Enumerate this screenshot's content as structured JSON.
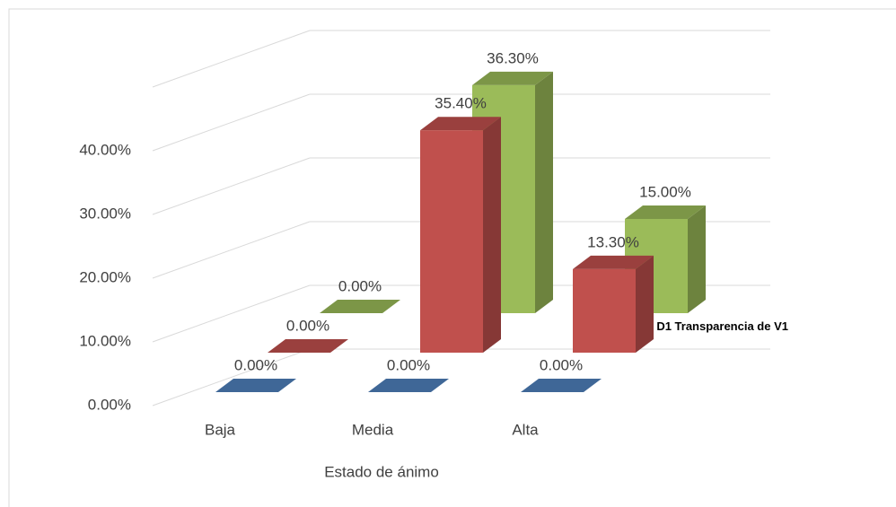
{
  "chart_data": {
    "type": "bar3d",
    "categories": [
      "Baja",
      "Media",
      "Alta"
    ],
    "x_label": "Estado de ánimo",
    "depth_label": "D1 Transparencia de V1",
    "series": [
      {
        "color": "#4F81BD",
        "values": [
          0,
          0,
          0
        ],
        "value_labels": [
          "0.00%",
          "0.00%",
          "0.00%"
        ]
      },
      {
        "color": "#C0504D",
        "values": [
          0,
          35.4,
          13.3
        ],
        "value_labels": [
          "0.00%",
          "35.40%",
          "13.30%"
        ]
      },
      {
        "color": "#9BBB59",
        "values": [
          0,
          36.3,
          15.0
        ],
        "value_labels": [
          "0.00%",
          "36.30%",
          "15.00%"
        ]
      }
    ],
    "ylim": [
      0,
      50
    ],
    "yticks": [
      {
        "value": 0,
        "label": "0.00%"
      },
      {
        "value": 10,
        "label": "10.00%"
      },
      {
        "value": 20,
        "label": "20.00%"
      },
      {
        "value": 30,
        "label": "30.00%"
      },
      {
        "value": 40,
        "label": "40.00%"
      }
    ],
    "grid": true
  }
}
